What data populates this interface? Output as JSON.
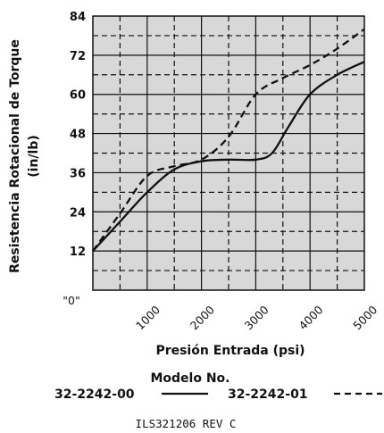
{
  "chart_data": {
    "type": "line",
    "xlabel": "Presión Entrada (psi)",
    "ylabel": "Resistencia Rotacional de Torque",
    "ylabel_unit": "(in/lb)",
    "xlim": [
      0,
      5000
    ],
    "ylim": [
      0,
      84
    ],
    "x_ticks": [
      "\"0\"",
      "1000",
      "2000",
      "3000",
      "4000",
      "5000"
    ],
    "y_ticks": [
      "12",
      "24",
      "36",
      "48",
      "60",
      "72",
      "84"
    ],
    "grid": true,
    "series": [
      {
        "name": "32-2242-00",
        "line_style": "solid",
        "x": [
          0,
          500,
          1000,
          1500,
          2000,
          2500,
          3000,
          3300,
          3600,
          4000,
          4500,
          5000
        ],
        "y": [
          12,
          21,
          30,
          37,
          39.5,
          40,
          40,
          42,
          50,
          60,
          66,
          70
        ]
      },
      {
        "name": "32-2242-01",
        "line_style": "dashed",
        "x": [
          0,
          500,
          1000,
          1500,
          2000,
          2500,
          3000,
          3500,
          4000,
          4500,
          5000
        ],
        "y": [
          12,
          23.5,
          35,
          38,
          40,
          47,
          60,
          65,
          69,
          74,
          80
        ]
      }
    ],
    "legend": {
      "title": "Modelo No.",
      "placement": "bottom"
    }
  },
  "footnote": "ILS321206   REV C",
  "colors": {
    "line": "#111111",
    "plot_bg": "#d8d8d8",
    "grid": "#111111"
  }
}
